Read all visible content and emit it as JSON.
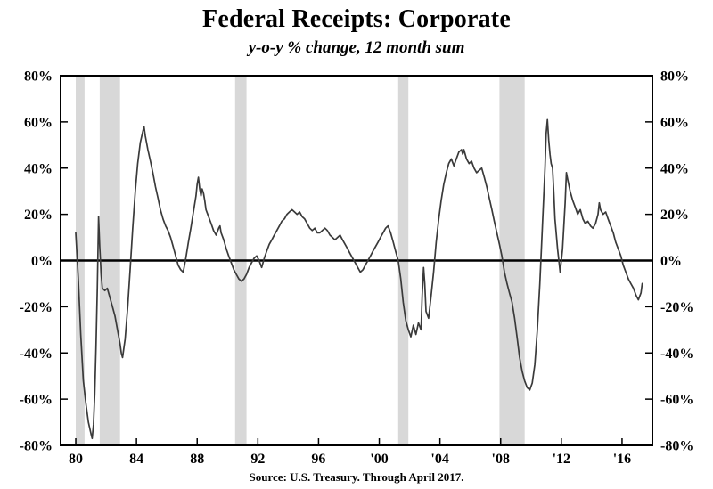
{
  "title": "Federal Receipts: Corporate",
  "subtitle": "y-o-y % change, 12 month sum",
  "source": "Source: U.S. Treasury. Through April 2017.",
  "chart_data": {
    "type": "line",
    "title": "Federal Receipts: Corporate",
    "subtitle": "y-o-y % change, 12 month sum",
    "xlabel": "",
    "ylabel": "",
    "xlim": [
      1979,
      2018
    ],
    "ylim": [
      -80,
      80
    ],
    "grid": false,
    "zero_line": true,
    "y_ticks": [
      {
        "value": 80,
        "label": "80%"
      },
      {
        "value": 60,
        "label": "60%"
      },
      {
        "value": 40,
        "label": "40%"
      },
      {
        "value": 20,
        "label": "20%"
      },
      {
        "value": 0,
        "label": "0%"
      },
      {
        "value": -20,
        "label": "-20%"
      },
      {
        "value": -40,
        "label": "-40%"
      },
      {
        "value": -60,
        "label": "-60%"
      },
      {
        "value": -80,
        "label": "-80%"
      }
    ],
    "x_ticks": [
      {
        "value": 1980,
        "label": "80"
      },
      {
        "value": 1984,
        "label": "84"
      },
      {
        "value": 1988,
        "label": "88"
      },
      {
        "value": 1992,
        "label": "92"
      },
      {
        "value": 1996,
        "label": "96"
      },
      {
        "value": 2000,
        "label": "'00"
      },
      {
        "value": 2004,
        "label": "'04"
      },
      {
        "value": 2008,
        "label": "'08"
      },
      {
        "value": 2012,
        "label": "'12"
      },
      {
        "value": 2016,
        "label": "'16"
      }
    ],
    "shaded_regions": [
      {
        "from": 1980.0,
        "to": 1980.58
      },
      {
        "from": 1981.58,
        "to": 1982.92
      },
      {
        "from": 1990.5,
        "to": 1991.25
      },
      {
        "from": 2001.25,
        "to": 2001.92
      },
      {
        "from": 2007.92,
        "to": 2009.58
      }
    ],
    "colors": {
      "line": "#3a3a3a",
      "band": "#d8d8d8",
      "axis": "#000000"
    },
    "series": [
      {
        "name": "Corporate federal receipts, y-o-y % change (12 month sum)",
        "points": [
          [
            1980,
            12
          ],
          [
            1980.17,
            -8
          ],
          [
            1980.33,
            -32
          ],
          [
            1980.5,
            -52
          ],
          [
            1980.67,
            -62
          ],
          [
            1980.83,
            -70
          ],
          [
            1981,
            -75
          ],
          [
            1981.08,
            -77
          ],
          [
            1981.17,
            -71
          ],
          [
            1981.25,
            -58
          ],
          [
            1981.33,
            -38
          ],
          [
            1981.42,
            -12
          ],
          [
            1981.5,
            19
          ],
          [
            1981.58,
            6
          ],
          [
            1981.67,
            -6
          ],
          [
            1981.75,
            -12
          ],
          [
            1981.92,
            -13
          ],
          [
            1982.08,
            -12
          ],
          [
            1982.25,
            -16
          ],
          [
            1982.42,
            -20
          ],
          [
            1982.58,
            -24
          ],
          [
            1982.75,
            -30
          ],
          [
            1982.92,
            -36
          ],
          [
            1983,
            -40
          ],
          [
            1983.08,
            -42
          ],
          [
            1983.25,
            -34
          ],
          [
            1983.42,
            -20
          ],
          [
            1983.58,
            -4
          ],
          [
            1983.75,
            14
          ],
          [
            1983.92,
            30
          ],
          [
            1984.08,
            42
          ],
          [
            1984.25,
            51
          ],
          [
            1984.42,
            56
          ],
          [
            1984.5,
            58
          ],
          [
            1984.58,
            54
          ],
          [
            1984.75,
            48
          ],
          [
            1984.92,
            43
          ],
          [
            1985.08,
            38
          ],
          [
            1985.25,
            32
          ],
          [
            1985.42,
            27
          ],
          [
            1985.58,
            22
          ],
          [
            1985.75,
            18
          ],
          [
            1985.92,
            15
          ],
          [
            1986.08,
            13
          ],
          [
            1986.25,
            10
          ],
          [
            1986.42,
            6
          ],
          [
            1986.58,
            2
          ],
          [
            1986.75,
            -2
          ],
          [
            1986.92,
            -4
          ],
          [
            1987.08,
            -5
          ],
          [
            1987.25,
            1
          ],
          [
            1987.42,
            8
          ],
          [
            1987.58,
            14
          ],
          [
            1987.75,
            21
          ],
          [
            1987.92,
            28
          ],
          [
            1988,
            33
          ],
          [
            1988.08,
            36
          ],
          [
            1988.17,
            31
          ],
          [
            1988.25,
            28
          ],
          [
            1988.33,
            31
          ],
          [
            1988.42,
            29
          ],
          [
            1988.5,
            26
          ],
          [
            1988.58,
            22
          ],
          [
            1988.75,
            19
          ],
          [
            1988.92,
            16
          ],
          [
            1989.08,
            13
          ],
          [
            1989.25,
            11
          ],
          [
            1989.42,
            14
          ],
          [
            1989.5,
            15
          ],
          [
            1989.58,
            12
          ],
          [
            1989.75,
            9
          ],
          [
            1989.92,
            5
          ],
          [
            1990.08,
            2
          ],
          [
            1990.25,
            -1
          ],
          [
            1990.42,
            -4
          ],
          [
            1990.58,
            -6
          ],
          [
            1990.75,
            -8
          ],
          [
            1990.92,
            -9
          ],
          [
            1991.08,
            -8
          ],
          [
            1991.25,
            -6
          ],
          [
            1991.42,
            -3
          ],
          [
            1991.58,
            -1
          ],
          [
            1991.75,
            1
          ],
          [
            1991.92,
            2
          ],
          [
            1992.08,
            0
          ],
          [
            1992.25,
            -3
          ],
          [
            1992.42,
            1
          ],
          [
            1992.58,
            4
          ],
          [
            1992.75,
            7
          ],
          [
            1992.92,
            9
          ],
          [
            1993.08,
            11
          ],
          [
            1993.25,
            13
          ],
          [
            1993.42,
            15
          ],
          [
            1993.58,
            17
          ],
          [
            1993.75,
            18
          ],
          [
            1993.92,
            20
          ],
          [
            1994.08,
            21
          ],
          [
            1994.25,
            22
          ],
          [
            1994.42,
            21
          ],
          [
            1994.58,
            20
          ],
          [
            1994.75,
            21
          ],
          [
            1994.92,
            19
          ],
          [
            1995.08,
            18
          ],
          [
            1995.25,
            16
          ],
          [
            1995.42,
            14
          ],
          [
            1995.58,
            13
          ],
          [
            1995.75,
            14
          ],
          [
            1995.92,
            12
          ],
          [
            1996.08,
            12
          ],
          [
            1996.25,
            13
          ],
          [
            1996.42,
            14
          ],
          [
            1996.58,
            13
          ],
          [
            1996.75,
            11
          ],
          [
            1996.92,
            10
          ],
          [
            1997.08,
            9
          ],
          [
            1997.25,
            10
          ],
          [
            1997.42,
            11
          ],
          [
            1997.58,
            9
          ],
          [
            1997.75,
            7
          ],
          [
            1997.92,
            5
          ],
          [
            1998.08,
            3
          ],
          [
            1998.25,
            1
          ],
          [
            1998.42,
            -1
          ],
          [
            1998.58,
            -3
          ],
          [
            1998.75,
            -5
          ],
          [
            1998.92,
            -4
          ],
          [
            1999.08,
            -2
          ],
          [
            1999.25,
            0
          ],
          [
            1999.42,
            2
          ],
          [
            1999.58,
            4
          ],
          [
            1999.75,
            6
          ],
          [
            1999.92,
            8
          ],
          [
            2000.08,
            10
          ],
          [
            2000.25,
            12
          ],
          [
            2000.42,
            14
          ],
          [
            2000.58,
            15
          ],
          [
            2000.75,
            12
          ],
          [
            2000.92,
            8
          ],
          [
            2001.08,
            4
          ],
          [
            2001.25,
            0
          ],
          [
            2001.42,
            -8
          ],
          [
            2001.58,
            -18
          ],
          [
            2001.75,
            -26
          ],
          [
            2001.92,
            -30
          ],
          [
            2002.08,
            -33
          ],
          [
            2002.25,
            -28
          ],
          [
            2002.42,
            -32
          ],
          [
            2002.58,
            -27
          ],
          [
            2002.75,
            -30
          ],
          [
            2002.83,
            -15
          ],
          [
            2002.92,
            -3
          ],
          [
            2003,
            -10
          ],
          [
            2003.08,
            -22
          ],
          [
            2003.25,
            -25
          ],
          [
            2003.42,
            -15
          ],
          [
            2003.58,
            -5
          ],
          [
            2003.75,
            8
          ],
          [
            2003.92,
            18
          ],
          [
            2004.08,
            26
          ],
          [
            2004.25,
            33
          ],
          [
            2004.42,
            38
          ],
          [
            2004.58,
            42
          ],
          [
            2004.75,
            44
          ],
          [
            2004.92,
            41
          ],
          [
            2005.08,
            44
          ],
          [
            2005.25,
            47
          ],
          [
            2005.42,
            48
          ],
          [
            2005.5,
            46
          ],
          [
            2005.58,
            48
          ],
          [
            2005.75,
            44
          ],
          [
            2005.92,
            42
          ],
          [
            2006.08,
            43
          ],
          [
            2006.25,
            40
          ],
          [
            2006.42,
            38
          ],
          [
            2006.58,
            39
          ],
          [
            2006.75,
            40
          ],
          [
            2006.92,
            36
          ],
          [
            2007.08,
            32
          ],
          [
            2007.25,
            27
          ],
          [
            2007.42,
            22
          ],
          [
            2007.58,
            17
          ],
          [
            2007.75,
            12
          ],
          [
            2007.92,
            7
          ],
          [
            2008.08,
            2
          ],
          [
            2008.25,
            -5
          ],
          [
            2008.42,
            -10
          ],
          [
            2008.58,
            -14
          ],
          [
            2008.75,
            -18
          ],
          [
            2008.92,
            -25
          ],
          [
            2009.08,
            -33
          ],
          [
            2009.25,
            -42
          ],
          [
            2009.42,
            -48
          ],
          [
            2009.58,
            -52
          ],
          [
            2009.75,
            -55
          ],
          [
            2009.92,
            -56
          ],
          [
            2010.08,
            -53
          ],
          [
            2010.25,
            -45
          ],
          [
            2010.42,
            -30
          ],
          [
            2010.58,
            -10
          ],
          [
            2010.75,
            15
          ],
          [
            2010.92,
            40
          ],
          [
            2011,
            55
          ],
          [
            2011.08,
            61
          ],
          [
            2011.17,
            52
          ],
          [
            2011.25,
            46
          ],
          [
            2011.33,
            42
          ],
          [
            2011.42,
            40
          ],
          [
            2011.5,
            30
          ],
          [
            2011.58,
            18
          ],
          [
            2011.75,
            5
          ],
          [
            2011.92,
            -5
          ],
          [
            2012.08,
            5
          ],
          [
            2012.25,
            25
          ],
          [
            2012.33,
            38
          ],
          [
            2012.42,
            35
          ],
          [
            2012.58,
            30
          ],
          [
            2012.75,
            26
          ],
          [
            2012.92,
            23
          ],
          [
            2013.08,
            20
          ],
          [
            2013.25,
            22
          ],
          [
            2013.42,
            18
          ],
          [
            2013.58,
            16
          ],
          [
            2013.75,
            17
          ],
          [
            2013.92,
            15
          ],
          [
            2014.08,
            14
          ],
          [
            2014.25,
            16
          ],
          [
            2014.42,
            20
          ],
          [
            2014.5,
            25
          ],
          [
            2014.58,
            22
          ],
          [
            2014.75,
            20
          ],
          [
            2014.92,
            21
          ],
          [
            2015.08,
            18
          ],
          [
            2015.25,
            15
          ],
          [
            2015.42,
            12
          ],
          [
            2015.58,
            8
          ],
          [
            2015.75,
            5
          ],
          [
            2015.92,
            2
          ],
          [
            2016.08,
            -2
          ],
          [
            2016.25,
            -5
          ],
          [
            2016.42,
            -8
          ],
          [
            2016.58,
            -10
          ],
          [
            2016.75,
            -12
          ],
          [
            2016.92,
            -15
          ],
          [
            2017.08,
            -17
          ],
          [
            2017.25,
            -14
          ],
          [
            2017.33,
            -10
          ]
        ]
      }
    ]
  }
}
